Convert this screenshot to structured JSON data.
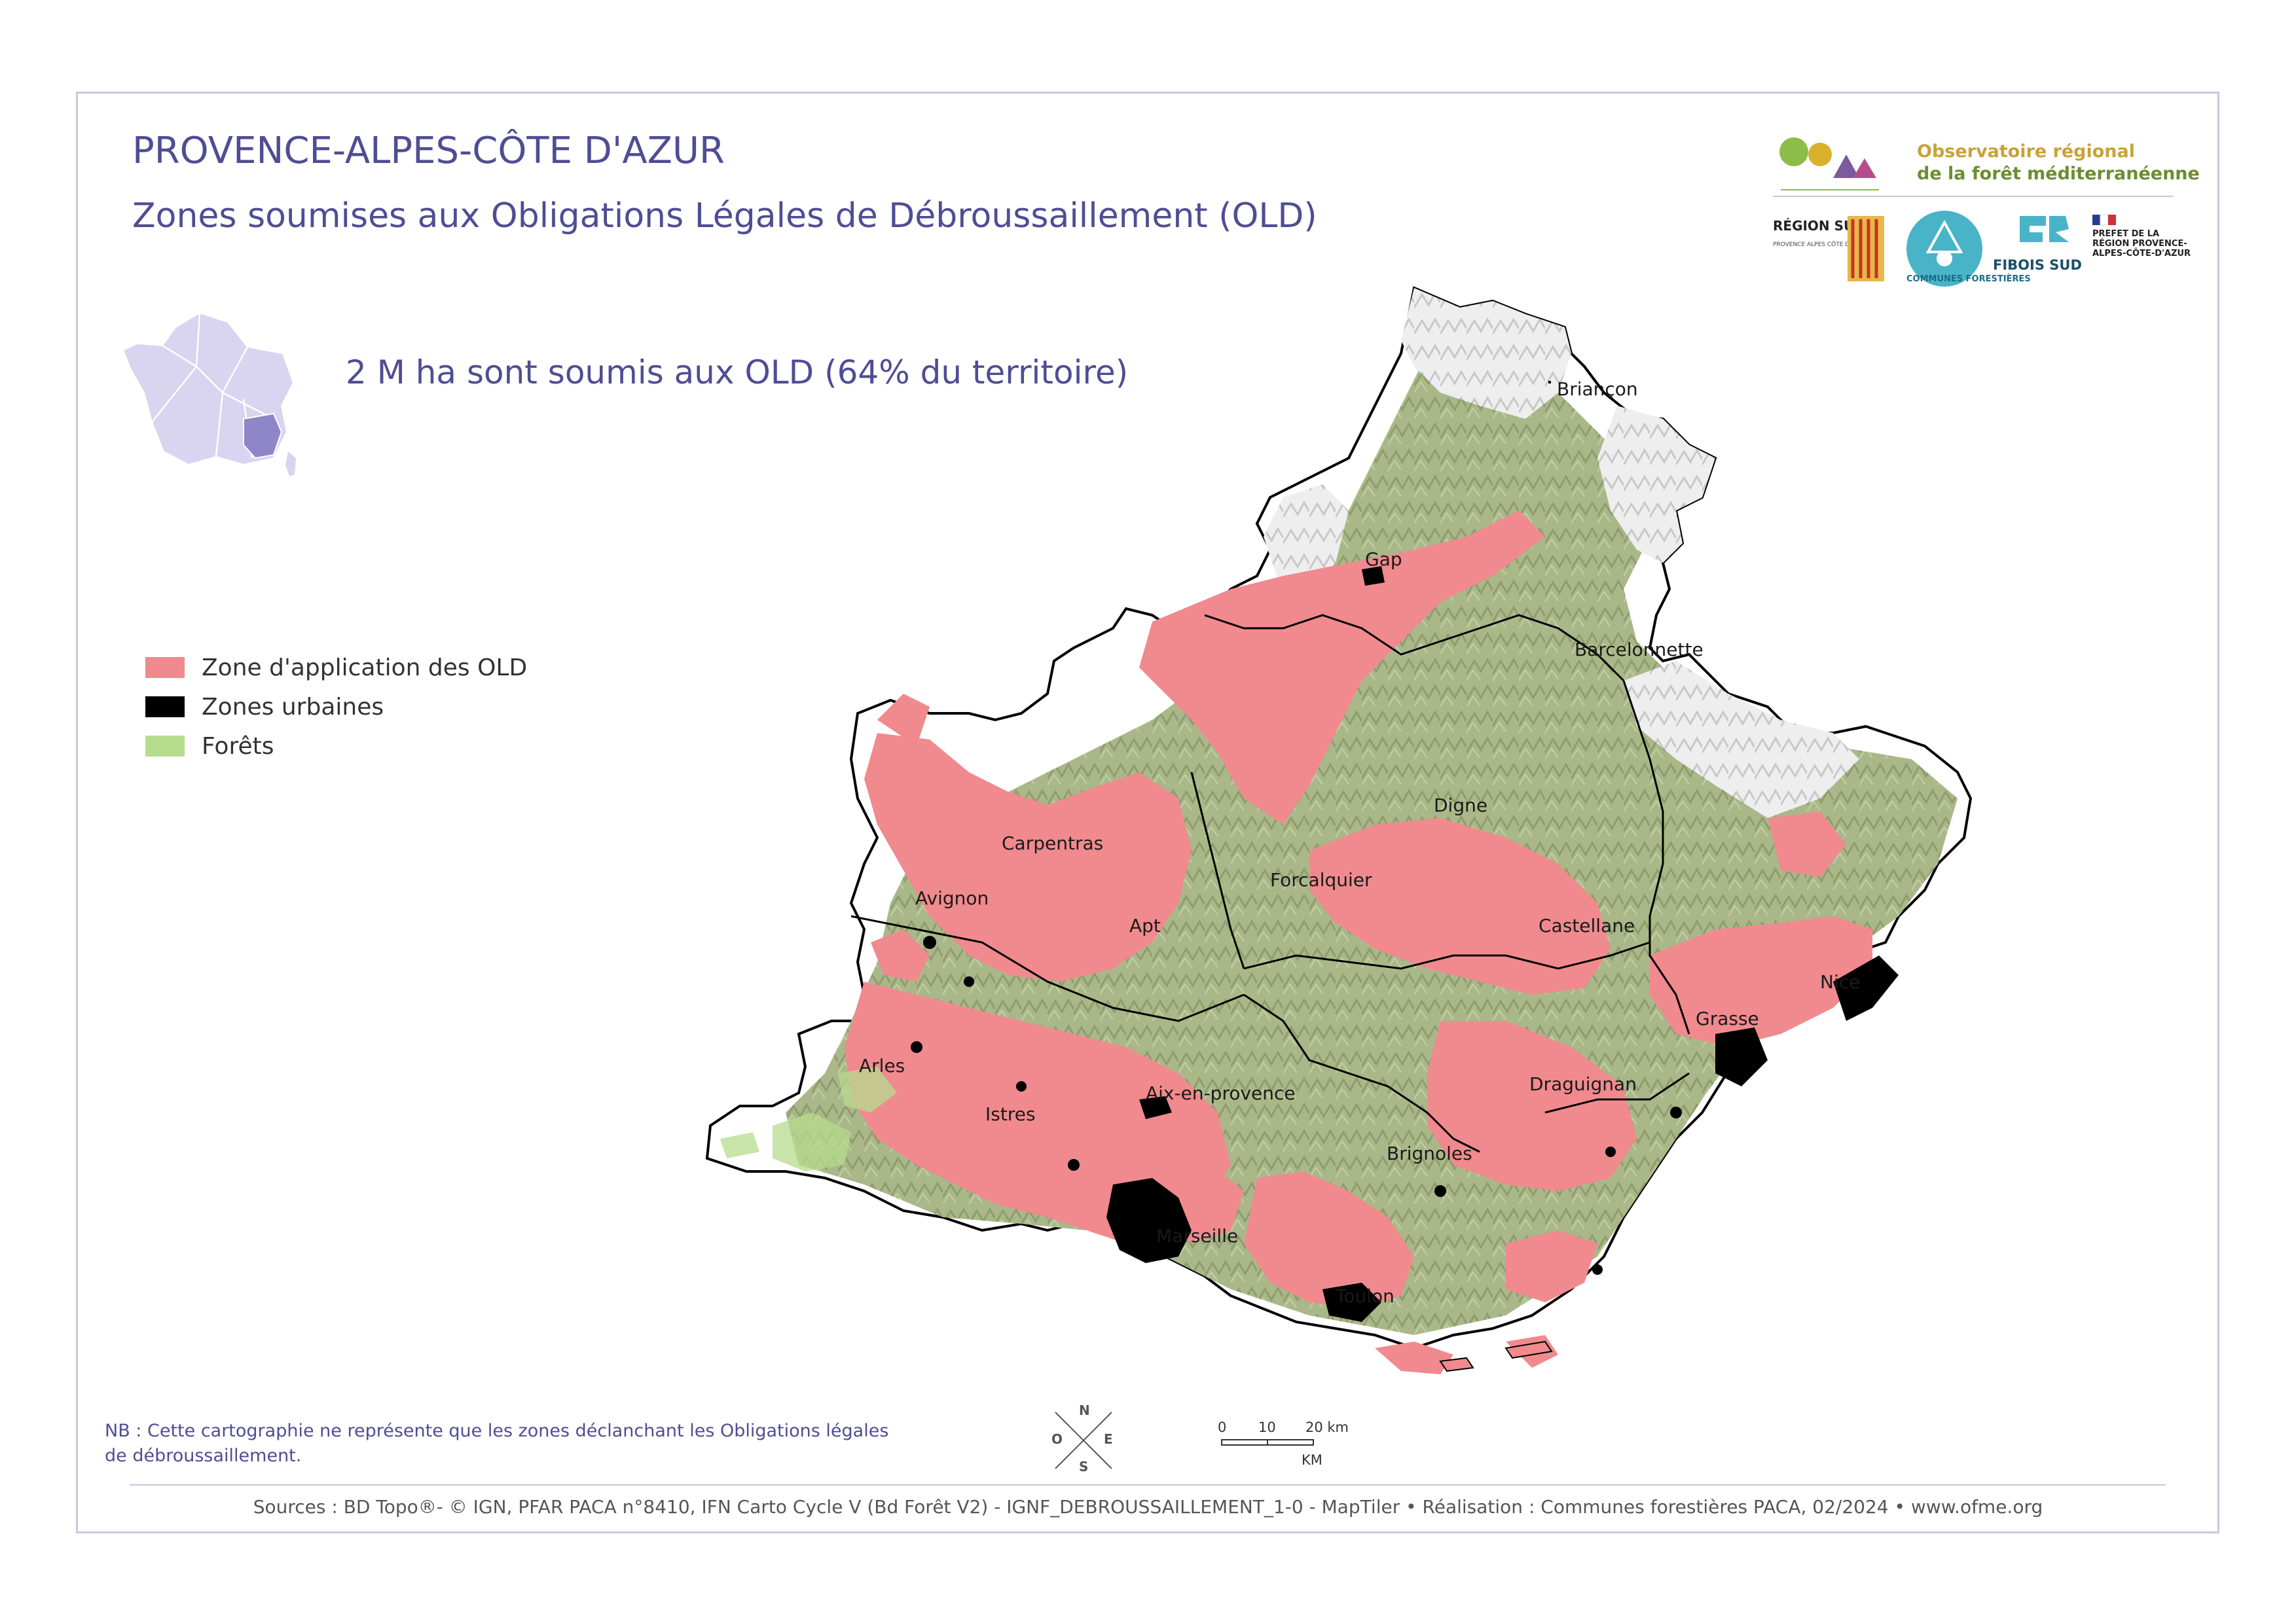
{
  "title": "PROVENCE-ALPES-CÔTE D'AZUR",
  "subtitle": "Zones soumises aux Obligations Légales de Débroussaillement (OLD)",
  "statistic": "2 M ha sont soumis aux OLD (64% du territoire)",
  "legend": [
    {
      "label": "Zone d'application des OLD",
      "color": "#f08a8e"
    },
    {
      "label": "Zones urbaines",
      "color": "#000000"
    },
    {
      "label": "Forêts",
      "color": "#b6dc8e"
    }
  ],
  "colors": {
    "accent": "#4f4d94",
    "forest_relief": "#a9b58a",
    "mountain_relief": "#e4e4e4",
    "france_inset": "#d9d4ef",
    "france_highlight": "#8f86c8"
  },
  "cities": [
    {
      "name": "Briançon"
    },
    {
      "name": "Gap"
    },
    {
      "name": "Barcelonnette"
    },
    {
      "name": "Digne"
    },
    {
      "name": "Carpentras"
    },
    {
      "name": "Avignon"
    },
    {
      "name": "Forcalquier"
    },
    {
      "name": "Apt"
    },
    {
      "name": "Castellane"
    },
    {
      "name": "Nice"
    },
    {
      "name": "Grasse"
    },
    {
      "name": "Arles"
    },
    {
      "name": "Aix-en-provence"
    },
    {
      "name": "Draguignan"
    },
    {
      "name": "Istres"
    },
    {
      "name": "Brignoles"
    },
    {
      "name": "Marseille"
    },
    {
      "name": "Toulon"
    }
  ],
  "note": "NB : Cette cartographie ne représente que les zones déclanchant les Obligations légales de débroussaillement.",
  "compass": {
    "n": "N",
    "s": "S",
    "e": "E",
    "o": "O"
  },
  "scale": {
    "ticks": [
      "0",
      "10",
      "20 km"
    ],
    "unit": "KM"
  },
  "sources": "Sources : BD Topo®- © IGN, PFAR PACA n°8410, IFN Carto Cycle V (Bd Forêt V2) - IGNF_DEBROUSSAILLEMENT_1-0 - MapTiler • Réalisation : Communes forestières PACA, 02/2024 • www.ofme.org",
  "logos": {
    "ofme_line1": "Observatoire régional",
    "ofme_line2": "de la forêt méditerranéenne",
    "region_sud": "RÉGION SUD",
    "region_sub": "PROVENCE ALPES CÔTE D'AZUR",
    "communes": "COMMUNES FORESTIÈRES",
    "fibois": "FIBOIS SUD",
    "prefet": "PRÉFET DE LA RÉGION PROVENCE-ALPES-CÔTE-D'AZUR"
  }
}
